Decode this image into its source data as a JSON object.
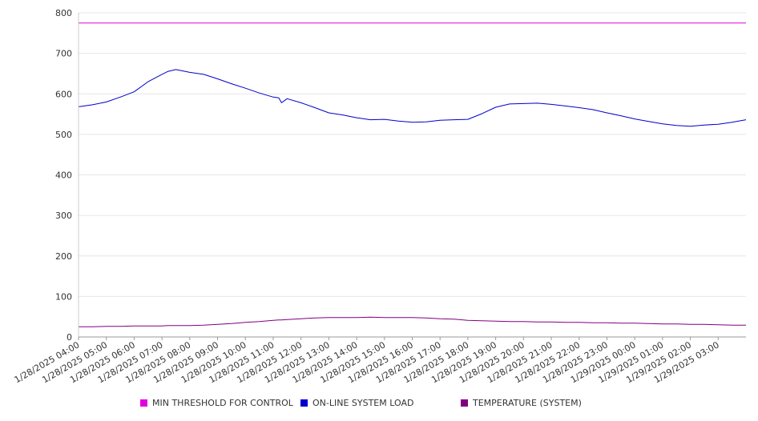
{
  "chart_data": {
    "type": "line",
    "title": "",
    "xlabel": "",
    "ylabel": "",
    "ylim": [
      0,
      800
    ],
    "yticks": [
      0,
      100,
      200,
      300,
      400,
      500,
      600,
      700,
      800
    ],
    "grid": true,
    "legend_position": "bottom",
    "x_tick_labels": [
      "1/28/2025 04:00",
      "1/28/2025 05:00",
      "1/28/2025 06:00",
      "1/28/2025 07:00",
      "1/28/2025 08:00",
      "1/28/2025 09:00",
      "1/28/2025 10:00",
      "1/28/2025 11:00",
      "1/28/2025 12:00",
      "1/28/2025 13:00",
      "1/28/2025 14:00",
      "1/28/2025 15:00",
      "1/28/2025 16:00",
      "1/28/2025 17:00",
      "1/28/2025 18:00",
      "1/28/2025 19:00",
      "1/28/2025 20:00",
      "1/28/2025 21:00",
      "1/28/2025 22:00",
      "1/28/2025 23:00",
      "1/29/2025 00:00",
      "1/29/2025 01:00",
      "1/29/2025 02:00",
      "1/29/2025 03:00"
    ],
    "x_hours": [
      0,
      0.5,
      1,
      1.5,
      2,
      2.5,
      3,
      3.2,
      3.5,
      4,
      4.5,
      5,
      5.5,
      6,
      6.5,
      7,
      7.2,
      7.3,
      7.5,
      8,
      8.5,
      9,
      9.5,
      10,
      10.5,
      11,
      11.5,
      12,
      12.5,
      13,
      13.5,
      14,
      14.5,
      15,
      15.5,
      16,
      16.5,
      17,
      17.5,
      18,
      18.5,
      19,
      19.5,
      20,
      20.5,
      21,
      21.5,
      22,
      22.5,
      23,
      23.5,
      24
    ],
    "series": [
      {
        "name": "MIN THRESHOLD FOR CONTROL",
        "color": "#e000e0",
        "values": [
          775,
          775,
          775,
          775,
          775,
          775,
          775,
          775,
          775,
          775,
          775,
          775,
          775,
          775,
          775,
          775,
          775,
          775,
          775,
          775,
          775,
          775,
          775,
          775,
          775,
          775,
          775,
          775,
          775,
          775,
          775,
          775,
          775,
          775,
          775,
          775,
          775,
          775,
          775,
          775,
          775,
          775,
          775,
          775,
          775,
          775,
          775,
          775,
          775,
          775,
          775,
          775
        ]
      },
      {
        "name": "ON-LINE SYSTEM LOAD",
        "color": "#0000cc",
        "values": [
          568,
          573,
          580,
          592,
          605,
          630,
          648,
          655,
          660,
          653,
          648,
          637,
          625,
          614,
          602,
          592,
          590,
          578,
          588,
          578,
          566,
          553,
          548,
          541,
          536,
          537,
          533,
          530,
          531,
          535,
          536,
          537,
          551,
          567,
          575,
          576,
          577,
          574,
          570,
          566,
          561,
          553,
          546,
          538,
          532,
          526,
          522,
          520,
          523,
          525,
          530,
          536
        ]
      },
      {
        "name": "TEMPERATURE (SYSTEM)",
        "color": "#800080",
        "values": [
          25,
          25,
          26,
          26,
          27,
          27,
          27,
          28,
          28,
          28,
          29,
          31,
          33,
          36,
          38,
          41,
          42,
          42,
          43,
          45,
          47,
          48,
          48,
          48,
          49,
          48,
          48,
          48,
          47,
          45,
          44,
          41,
          40,
          39,
          38,
          38,
          37,
          37,
          36,
          36,
          35,
          35,
          34,
          34,
          33,
          32,
          32,
          31,
          31,
          30,
          29,
          29
        ]
      }
    ]
  }
}
